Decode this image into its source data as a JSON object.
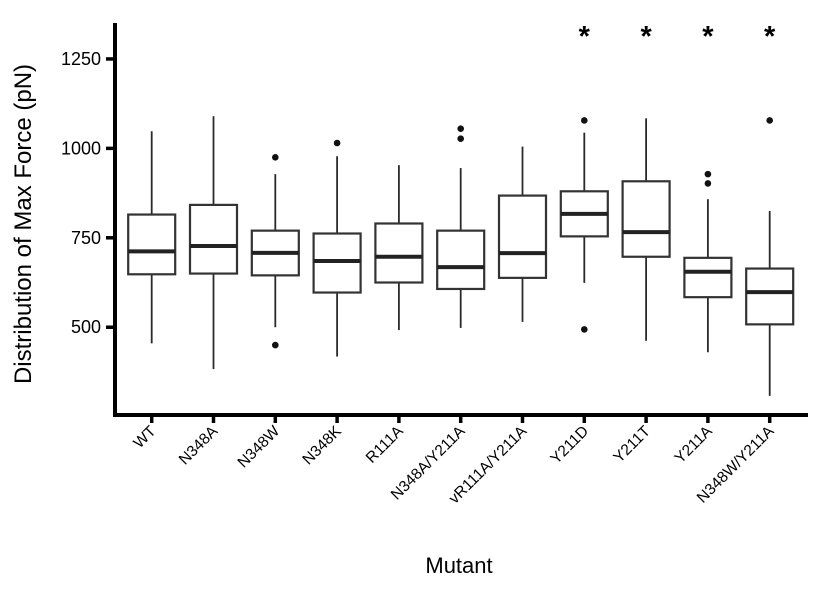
{
  "figure": {
    "background": "#ffffff",
    "axis_color": "#000000",
    "box_fill": "#ffffff",
    "box_stroke": "#333333",
    "median_color": "#222222",
    "whisker_color": "#2a2a2a",
    "outlier_color": "#111111",
    "significance_marker": "*"
  },
  "chart_data": {
    "type": "boxplot",
    "title": "",
    "xlabel": "Mutant",
    "ylabel": "Distribution of Max Force (pN)",
    "y_ticks": [
      500,
      750,
      1000,
      1250
    ],
    "ylim": [
      255,
      1345
    ],
    "grid": false,
    "legend": "none",
    "categories": [
      "WT",
      "N348A",
      "N348W",
      "N348K",
      "R111A",
      "N348A/Y211A",
      "vR111A/Y211A",
      "Y211D",
      "Y211T",
      "Y211A",
      "N348W/Y211A"
    ],
    "series": [
      {
        "category": "WT",
        "whisker_low": 455,
        "q1": 648,
        "median": 712,
        "q3": 815,
        "whisker_high": 1048,
        "outliers": [],
        "significant": false
      },
      {
        "category": "N348A",
        "whisker_low": 383,
        "q1": 650,
        "median": 727,
        "q3": 842,
        "whisker_high": 1090,
        "outliers": [],
        "significant": false
      },
      {
        "category": "N348W",
        "whisker_low": 500,
        "q1": 645,
        "median": 708,
        "q3": 770,
        "whisker_high": 928,
        "outliers": [
          975,
          450
        ],
        "significant": false
      },
      {
        "category": "N348K",
        "whisker_low": 418,
        "q1": 597,
        "median": 685,
        "q3": 762,
        "whisker_high": 978,
        "outliers": [
          1015
        ],
        "significant": false
      },
      {
        "category": "R111A",
        "whisker_low": 492,
        "q1": 625,
        "median": 697,
        "q3": 790,
        "whisker_high": 953,
        "outliers": [],
        "significant": false
      },
      {
        "category": "N348A/Y211A",
        "whisker_low": 498,
        "q1": 607,
        "median": 668,
        "q3": 770,
        "whisker_high": 945,
        "outliers": [
          1055,
          1027
        ],
        "significant": false
      },
      {
        "category": "vR111A/Y211A",
        "whisker_low": 515,
        "q1": 638,
        "median": 707,
        "q3": 868,
        "whisker_high": 1005,
        "outliers": [],
        "significant": false
      },
      {
        "category": "Y211D",
        "whisker_low": 624,
        "q1": 754,
        "median": 817,
        "q3": 880,
        "whisker_high": 1044,
        "outliers": [
          1078,
          494
        ],
        "significant": true
      },
      {
        "category": "Y211T",
        "whisker_low": 462,
        "q1": 697,
        "median": 766,
        "q3": 908,
        "whisker_high": 1084,
        "outliers": [],
        "significant": true
      },
      {
        "category": "Y211A",
        "whisker_low": 430,
        "q1": 584,
        "median": 655,
        "q3": 694,
        "whisker_high": 858,
        "outliers": [
          928,
          902
        ],
        "significant": true
      },
      {
        "category": "N348W/Y211A",
        "whisker_low": 308,
        "q1": 508,
        "median": 598,
        "q3": 664,
        "whisker_high": 825,
        "outliers": [
          1078
        ],
        "significant": true
      }
    ]
  }
}
